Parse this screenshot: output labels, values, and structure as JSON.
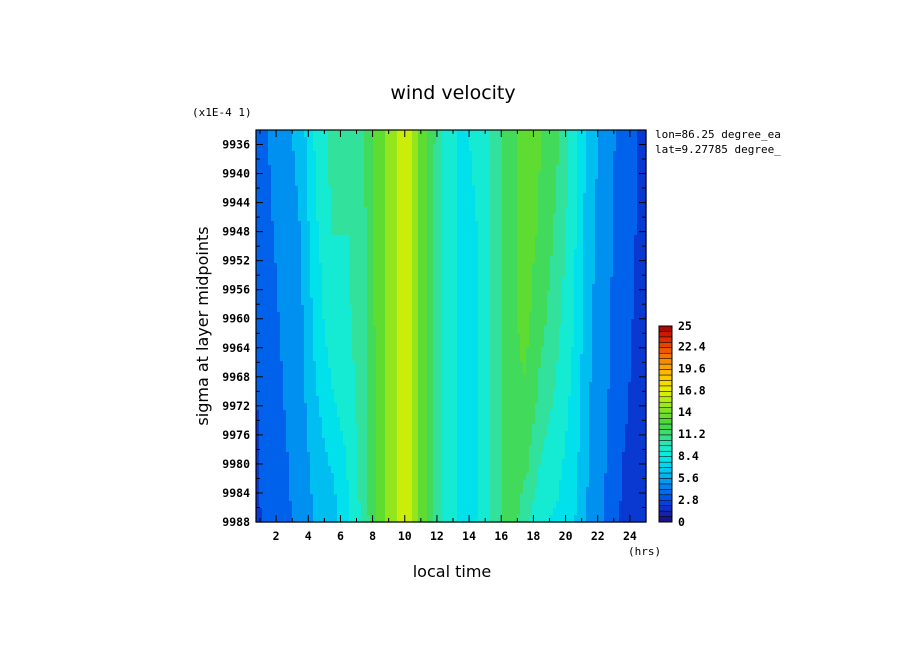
{
  "chart_data": {
    "type": "heatmap",
    "title": "wind velocity",
    "xlabel": "local time",
    "ylabel": "sigma at layer midpoints",
    "x_unit_label": "(hrs)",
    "y_scale_label": "(x1E-4 1)",
    "annotations": [
      "lon=86.25 degree_ea",
      "lat=9.27785 degree_"
    ],
    "xlim": [
      0.75,
      25
    ],
    "ylim": [
      9934,
      9988
    ],
    "y_inverted": true,
    "x_ticks": [
      "2",
      "4",
      "6",
      "8",
      "10",
      "12",
      "14",
      "16",
      "18",
      "20",
      "22",
      "24"
    ],
    "y_ticks": [
      "9936",
      "9940",
      "9944",
      "9948",
      "9952",
      "9956",
      "9960",
      "9964",
      "9968",
      "9972",
      "9976",
      "9980",
      "9984",
      "9988"
    ],
    "colorbar": {
      "min": 0,
      "max": 25,
      "tick_labels": [
        "25",
        "22.4",
        "19.6",
        "16.8",
        "14",
        "11.2",
        "8.4",
        "5.6",
        "2.8",
        "0"
      ]
    },
    "x": [
      0.75,
      1.5,
      2.5,
      3.5,
      4.5,
      5.5,
      6.5,
      7.5,
      8.5,
      9.5,
      10,
      10.5,
      11.5,
      12.5,
      13.5,
      14.5,
      15.5,
      16.5,
      17.5,
      18.5,
      19.5,
      20.5,
      21.5,
      22.5,
      23.5,
      24.5,
      25
    ],
    "y": [
      9934,
      9948,
      9960,
      9972,
      9980,
      9988
    ],
    "z": [
      [
        3.0,
        4.2,
        5.0,
        6.2,
        8.8,
        10.4,
        10.0,
        11.2,
        13.6,
        15.4,
        16.2,
        15.2,
        12.2,
        9.4,
        8.2,
        8.6,
        10.2,
        12.2,
        13.2,
        12.6,
        11.4,
        9.2,
        6.2,
        5.0,
        3.6,
        2.8,
        2.4
      ],
      [
        2.9,
        4.0,
        4.6,
        5.6,
        8.2,
        9.8,
        9.8,
        11.0,
        13.6,
        15.4,
        16.2,
        15.2,
        12.0,
        9.2,
        8.0,
        8.4,
        10.2,
        12.2,
        13.2,
        12.4,
        10.8,
        8.8,
        6.0,
        4.8,
        3.4,
        2.7,
        2.3
      ],
      [
        2.8,
        3.8,
        4.4,
        5.2,
        7.6,
        9.4,
        9.6,
        11.0,
        13.6,
        15.4,
        16.2,
        15.2,
        12.0,
        9.2,
        8.0,
        8.4,
        10.2,
        12.2,
        13.0,
        11.6,
        10.2,
        8.4,
        5.8,
        4.6,
        3.2,
        2.6,
        2.2
      ],
      [
        2.7,
        3.6,
        4.2,
        5.0,
        6.8,
        8.2,
        9.0,
        10.8,
        13.6,
        15.4,
        16.2,
        15.2,
        12.0,
        9.2,
        8.0,
        8.4,
        10.2,
        12.2,
        12.4,
        10.6,
        9.4,
        8.0,
        5.6,
        4.4,
        3.0,
        2.5,
        2.1
      ],
      [
        2.6,
        3.4,
        4.0,
        4.8,
        6.2,
        7.2,
        8.6,
        10.6,
        13.6,
        15.4,
        16.2,
        15.2,
        12.0,
        9.2,
        8.0,
        8.4,
        10.2,
        12.2,
        11.6,
        9.6,
        8.8,
        7.6,
        5.4,
        4.2,
        2.8,
        2.4,
        2.0
      ],
      [
        2.5,
        3.2,
        3.8,
        4.6,
        5.8,
        6.2,
        8.2,
        10.4,
        13.6,
        15.4,
        16.2,
        15.2,
        12.0,
        9.2,
        8.0,
        8.4,
        10.2,
        12.2,
        10.2,
        8.6,
        8.2,
        7.2,
        5.2,
        4.0,
        2.6,
        2.3,
        1.9
      ]
    ]
  }
}
